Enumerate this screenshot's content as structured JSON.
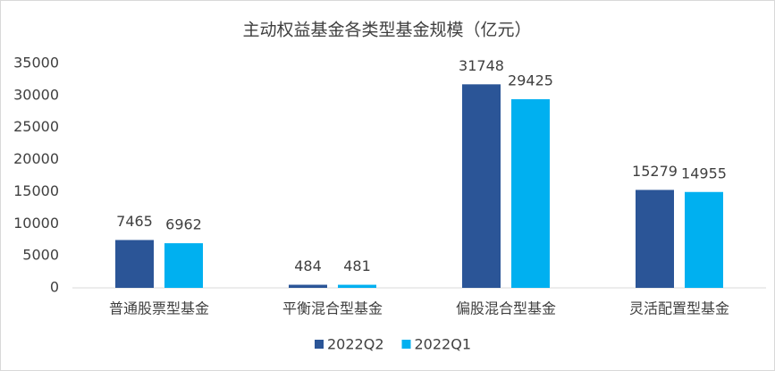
{
  "chart_data": {
    "type": "bar",
    "title": "主动权益基金各类型基金规模（亿元）",
    "categories": [
      "普通股票型基金",
      "平衡混合型基金",
      "偏股混合型基金",
      "灵活配置型基金"
    ],
    "series": [
      {
        "name": "2022Q2",
        "color": "#2b5597",
        "values": [
          7465,
          484,
          31748,
          15279
        ]
      },
      {
        "name": "2022Q1",
        "color": "#00b0f0",
        "values": [
          6962,
          481,
          29425,
          14955
        ]
      }
    ],
    "ylim": [
      0,
      35000
    ],
    "yticks": [
      0,
      5000,
      10000,
      15000,
      20000,
      25000,
      30000,
      35000
    ],
    "grid": false,
    "legend": "bottom"
  }
}
